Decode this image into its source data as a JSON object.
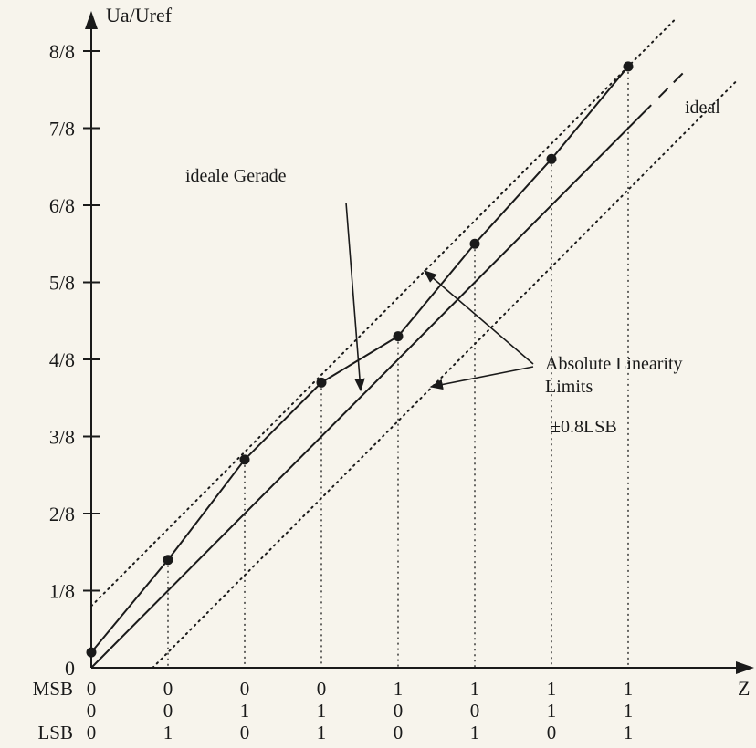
{
  "chart_data": {
    "type": "line",
    "y_axis_label": "Ua/Uref",
    "x_axis_label": "Z",
    "y_ticks": [
      "0",
      "1/8",
      "2/8",
      "3/8",
      "4/8",
      "5/8",
      "6/8",
      "7/8",
      "8/8"
    ],
    "codes": {
      "row_labels": [
        "MSB",
        "",
        "LSB"
      ],
      "msb": [
        "0",
        "0",
        "0",
        "0",
        "1",
        "1",
        "1",
        "1"
      ],
      "mid": [
        "0",
        "0",
        "1",
        "1",
        "0",
        "0",
        "1",
        "1"
      ],
      "lsb": [
        "0",
        "1",
        "0",
        "1",
        "0",
        "1",
        "0",
        "1"
      ]
    },
    "x": [
      0,
      1,
      2,
      3,
      4,
      5,
      6,
      7
    ],
    "measured_points": [
      0.2,
      1.4,
      2.7,
      3.7,
      4.3,
      5.5,
      6.6,
      7.8
    ],
    "ideal_line": {
      "x_start": 0,
      "y_start": 0,
      "x_end": 7.3,
      "y_end": 7.3,
      "dashed_extension_to": 7.75
    },
    "limit_offset": 0.8,
    "labels": {
      "ideal": "ideal",
      "ideale_gerade": "ideale Gerade",
      "limits_line1": "Absolute Linearity",
      "limits_line2": "Limits",
      "limits_value": "±0.8LSB"
    }
  }
}
